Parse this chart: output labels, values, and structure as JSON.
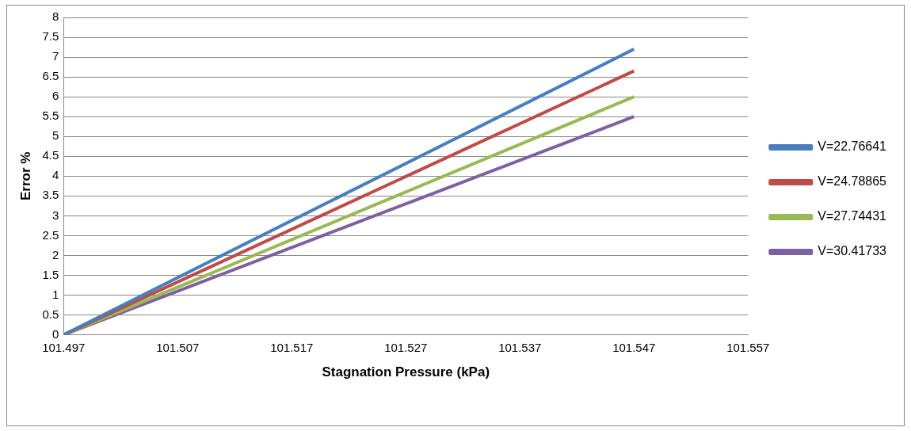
{
  "chart_data": {
    "type": "line",
    "xlabel": "Stagnation Pressure (kPa)",
    "ylabel": "Error %",
    "x": [
      101.497,
      101.547
    ],
    "series": [
      {
        "name": "V=22.76641",
        "color": "#4a7ebb",
        "values": [
          0,
          7.2
        ]
      },
      {
        "name": "V=24.78865",
        "color": "#be4b48",
        "values": [
          0,
          6.65
        ]
      },
      {
        "name": "V=27.74431",
        "color": "#98b954",
        "values": [
          0,
          6.0
        ]
      },
      {
        "name": "V=30.41733",
        "color": "#7d60a0",
        "values": [
          0,
          5.5
        ]
      }
    ],
    "xlim": [
      101.497,
      101.557
    ],
    "xticks": [
      101.497,
      101.507,
      101.517,
      101.527,
      101.537,
      101.547,
      101.557
    ],
    "ylim": [
      0,
      8
    ],
    "yticks": [
      0,
      0.5,
      1,
      1.5,
      2,
      2.5,
      3,
      3.5,
      4,
      4.5,
      5,
      5.5,
      6,
      6.5,
      7,
      7.5,
      8
    ],
    "grid": "y",
    "legend": "right",
    "marker": "none",
    "line_style": "solid"
  }
}
